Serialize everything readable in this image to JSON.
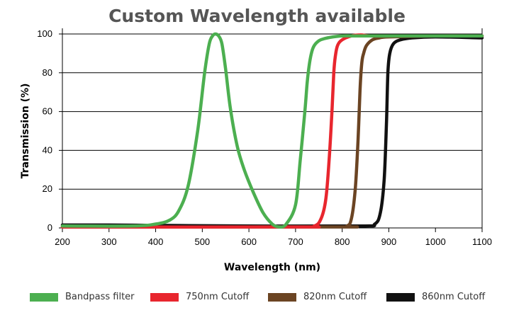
{
  "chart_data": {
    "type": "line",
    "title": "Custom Wavelength available",
    "xlabel": "Wavelength (nm)",
    "ylabel": "Transmission (%)",
    "xlim": [
      200,
      1100
    ],
    "ylim": [
      0,
      100
    ],
    "xticks": [
      200,
      300,
      400,
      500,
      600,
      700,
      800,
      900,
      1000,
      1100
    ],
    "yticks": [
      0,
      20,
      40,
      60,
      80,
      100
    ],
    "grid": "horizontal",
    "legend_position": "bottom",
    "series": [
      {
        "name": "Bandpass filter",
        "color": "#4CAF50",
        "x": [
          200,
          350,
          400,
          430,
          450,
          470,
          490,
          505,
          515,
          522,
          528,
          535,
          542,
          550,
          560,
          575,
          590,
          610,
          630,
          650,
          665,
          680,
          700,
          710,
          720,
          725,
          730,
          735,
          740,
          750,
          760,
          780,
          800,
          820,
          840,
          860,
          900,
          1000,
          1100
        ],
        "y": [
          1,
          1,
          2,
          4,
          9,
          22,
          50,
          80,
          95,
          99,
          100,
          99,
          95,
          82,
          62,
          42,
          30,
          18,
          8,
          2,
          0.5,
          2,
          12,
          35,
          60,
          75,
          85,
          91,
          94,
          96.5,
          97.5,
          98.5,
          99,
          99,
          99,
          99,
          99,
          99,
          99
        ]
      },
      {
        "name": "750nm Cutoff",
        "color": "#E8262E",
        "x": [
          200,
          700,
          740,
          755,
          765,
          772,
          778,
          782,
          785,
          790,
          800,
          820,
          840,
          860,
          900,
          1000,
          1100
        ],
        "y": [
          0.5,
          0.5,
          1,
          5,
          15,
          35,
          60,
          80,
          88,
          94,
          97,
          99,
          99.5,
          99,
          99,
          99,
          99
        ]
      },
      {
        "name": "820nm Cutoff",
        "color": "#6B4423",
        "x": [
          200,
          780,
          810,
          820,
          828,
          834,
          838,
          842,
          846,
          852,
          865,
          880,
          900,
          1000,
          1100
        ],
        "y": [
          0.5,
          0.5,
          1,
          5,
          20,
          45,
          70,
          85,
          90,
          94,
          97,
          98,
          98.5,
          99,
          99
        ]
      },
      {
        "name": "860nm Cutoff",
        "color": "#111111",
        "x": [
          200,
          300,
          600,
          840,
          870,
          882,
          890,
          895,
          898,
          902,
          910,
          925,
          950,
          1000,
          1100
        ],
        "y": [
          1.5,
          1.5,
          1,
          1,
          2,
          8,
          25,
          55,
          80,
          90,
          95,
          97,
          98,
          98.5,
          98
        ]
      }
    ]
  }
}
